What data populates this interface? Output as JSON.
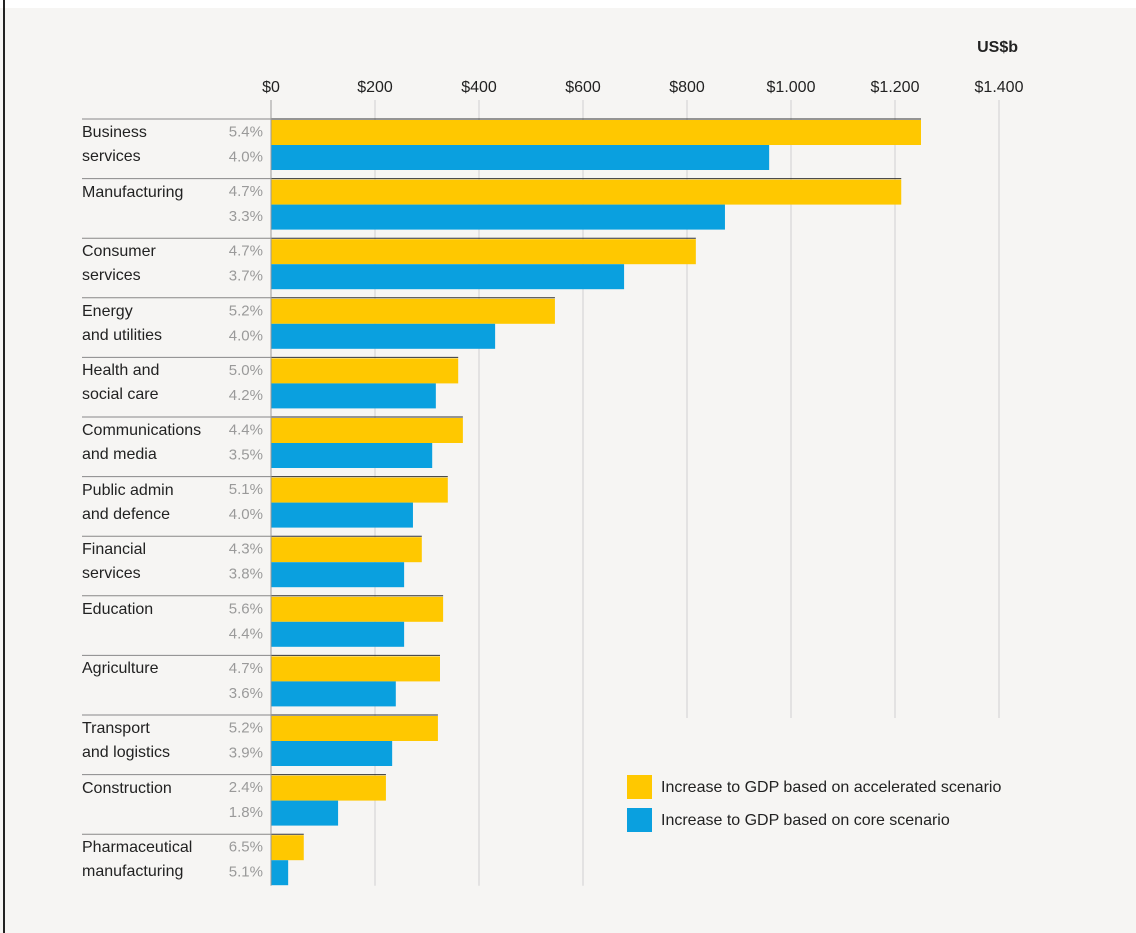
{
  "chart_data": {
    "type": "bar",
    "orientation": "horizontal",
    "axis_unit": "US$b",
    "categories": [
      "Business\nservices",
      "Manufacturing",
      "Consumer\nservices",
      "Energy\nand utilities",
      "Health and\nsocial care",
      "Communications\nand media",
      "Public admin\nand defence",
      "Financial\nservices",
      "Education",
      "Agriculture",
      "Transport\nand logistics",
      "Construction",
      "Pharmaceutical\nmanufacturing"
    ],
    "series": [
      {
        "name": "Increase to GDP based on accelerated scenario",
        "color": "#ffc800",
        "values": [
          1250,
          1212,
          817,
          546,
          360,
          369,
          340,
          290,
          331,
          325,
          321,
          221,
          63
        ],
        "growth_labels": [
          "5.4%",
          "4.7%",
          "4.7%",
          "5.2%",
          "5.0%",
          "4.4%",
          "5.1%",
          "4.3%",
          "5.6%",
          "4.7%",
          "5.2%",
          "2.4%",
          "6.5%"
        ]
      },
      {
        "name": "Increase to GDP based on core scenario",
        "color": "#0aa0df",
        "values": [
          958,
          873,
          679,
          431,
          317,
          310,
          273,
          256,
          256,
          240,
          233,
          129,
          33
        ],
        "growth_labels": [
          "4.0%",
          "3.3%",
          "3.7%",
          "4.0%",
          "4.2%",
          "3.5%",
          "4.0%",
          "3.8%",
          "4.4%",
          "3.6%",
          "3.9%",
          "1.8%",
          "5.1%"
        ]
      }
    ],
    "xlim": [
      0,
      1400
    ],
    "xticks": [
      {
        "value": 0,
        "label": "$0"
      },
      {
        "value": 200,
        "label": "$200"
      },
      {
        "value": 400,
        "label": "$400"
      },
      {
        "value": 600,
        "label": "$600"
      },
      {
        "value": 800,
        "label": "$800"
      },
      {
        "value": 1000,
        "label": "$1.000"
      },
      {
        "value": 1200,
        "label": "$1.200"
      },
      {
        "value": 1400,
        "label": "$1.400"
      }
    ],
    "grid": true
  }
}
